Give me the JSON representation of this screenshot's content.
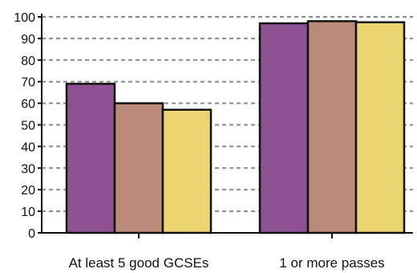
{
  "chart_data": {
    "type": "bar",
    "title": "",
    "xlabel": "",
    "ylabel": "",
    "ylim": [
      0,
      100
    ],
    "yticks": [
      0,
      10,
      20,
      30,
      40,
      50,
      60,
      70,
      80,
      90,
      100
    ],
    "grid": true,
    "legend": "none",
    "categories": [
      "At least 5 good GCSEs",
      "1 or more passes"
    ],
    "series": [
      {
        "color": "#8e5293",
        "values": [
          69,
          97
        ]
      },
      {
        "color": "#bc8a78",
        "values": [
          60,
          98
        ]
      },
      {
        "color": "#ecd470",
        "values": [
          57,
          97.5
        ]
      }
    ]
  }
}
